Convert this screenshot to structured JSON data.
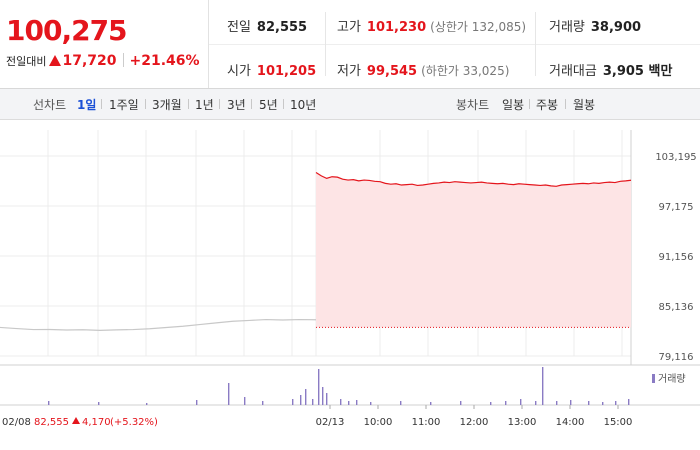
{
  "header": {
    "price": "100,275",
    "change_label": "전일대비",
    "change_value": "17,720",
    "change_pct": "+21.46%"
  },
  "stats": {
    "prev_close": {
      "label": "전일",
      "value": "82,555"
    },
    "high": {
      "label": "고가",
      "value": "101,230",
      "extra": "(상한가 132,085)"
    },
    "volume": {
      "label": "거래량",
      "value": "38,900"
    },
    "open": {
      "label": "시가",
      "value": "101,205"
    },
    "low": {
      "label": "저가",
      "value": "99,545",
      "extra": "(하한가 33,025)"
    },
    "trade_value": {
      "label": "거래대금",
      "value": "3,905 백만"
    }
  },
  "periods": {
    "label": "선차트",
    "items": [
      "1일",
      "1주일",
      "3개월",
      "1년",
      "3년",
      "5년",
      "10년"
    ],
    "active": "1일"
  },
  "candles": {
    "label": "봉차트",
    "items": [
      "일봉",
      "주봉",
      "월봉"
    ]
  },
  "footer": {
    "prev_date": "02/08",
    "prev_price": "82,555",
    "prev_change": "4,170",
    "prev_pct": "(+5.32%)"
  },
  "colors": {
    "up": "#e4151c",
    "fill": "#fde4e5",
    "volume": "#8a7bc4",
    "prev_line": "#c8c8c8"
  },
  "chart_data": {
    "type": "line",
    "y_ticks": [
      "103,195",
      "97,175",
      "91,156",
      "85,136",
      "79,116"
    ],
    "ylim": [
      79116,
      103195
    ],
    "x_ticks": [
      "02/13",
      "10:00",
      "11:00",
      "12:00",
      "13:00",
      "14:00",
      "15:00"
    ],
    "volume_legend": "거래량",
    "prev_day": {
      "date": "02/08",
      "values": [
        82555,
        82420,
        82300,
        82310,
        82250,
        82280,
        82200,
        82260,
        82300,
        82400,
        82550,
        82700,
        82900,
        83100,
        83300,
        83400,
        83500,
        83450,
        83500,
        83480
      ]
    },
    "today": {
      "date": "02/13",
      "values": [
        101205,
        100800,
        100500,
        100700,
        100650,
        100400,
        100300,
        100350,
        100200,
        100300,
        100250,
        100150,
        100100,
        99900,
        99800,
        99850,
        99700,
        99750,
        99800,
        99650,
        99700,
        99800,
        99900,
        99950,
        100050,
        100000,
        100100,
        100050,
        100000,
        99950,
        100000,
        100050,
        99950,
        99900,
        99850,
        99900,
        99800,
        99750,
        99850,
        99800,
        99750,
        99700,
        99650,
        99700,
        99600,
        99545,
        99700,
        99750,
        99800,
        99850,
        99900,
        99850,
        99950,
        99900,
        100000,
        100050,
        100000,
        100150,
        100200,
        100275
      ],
      "baseline": 82555
    }
  }
}
